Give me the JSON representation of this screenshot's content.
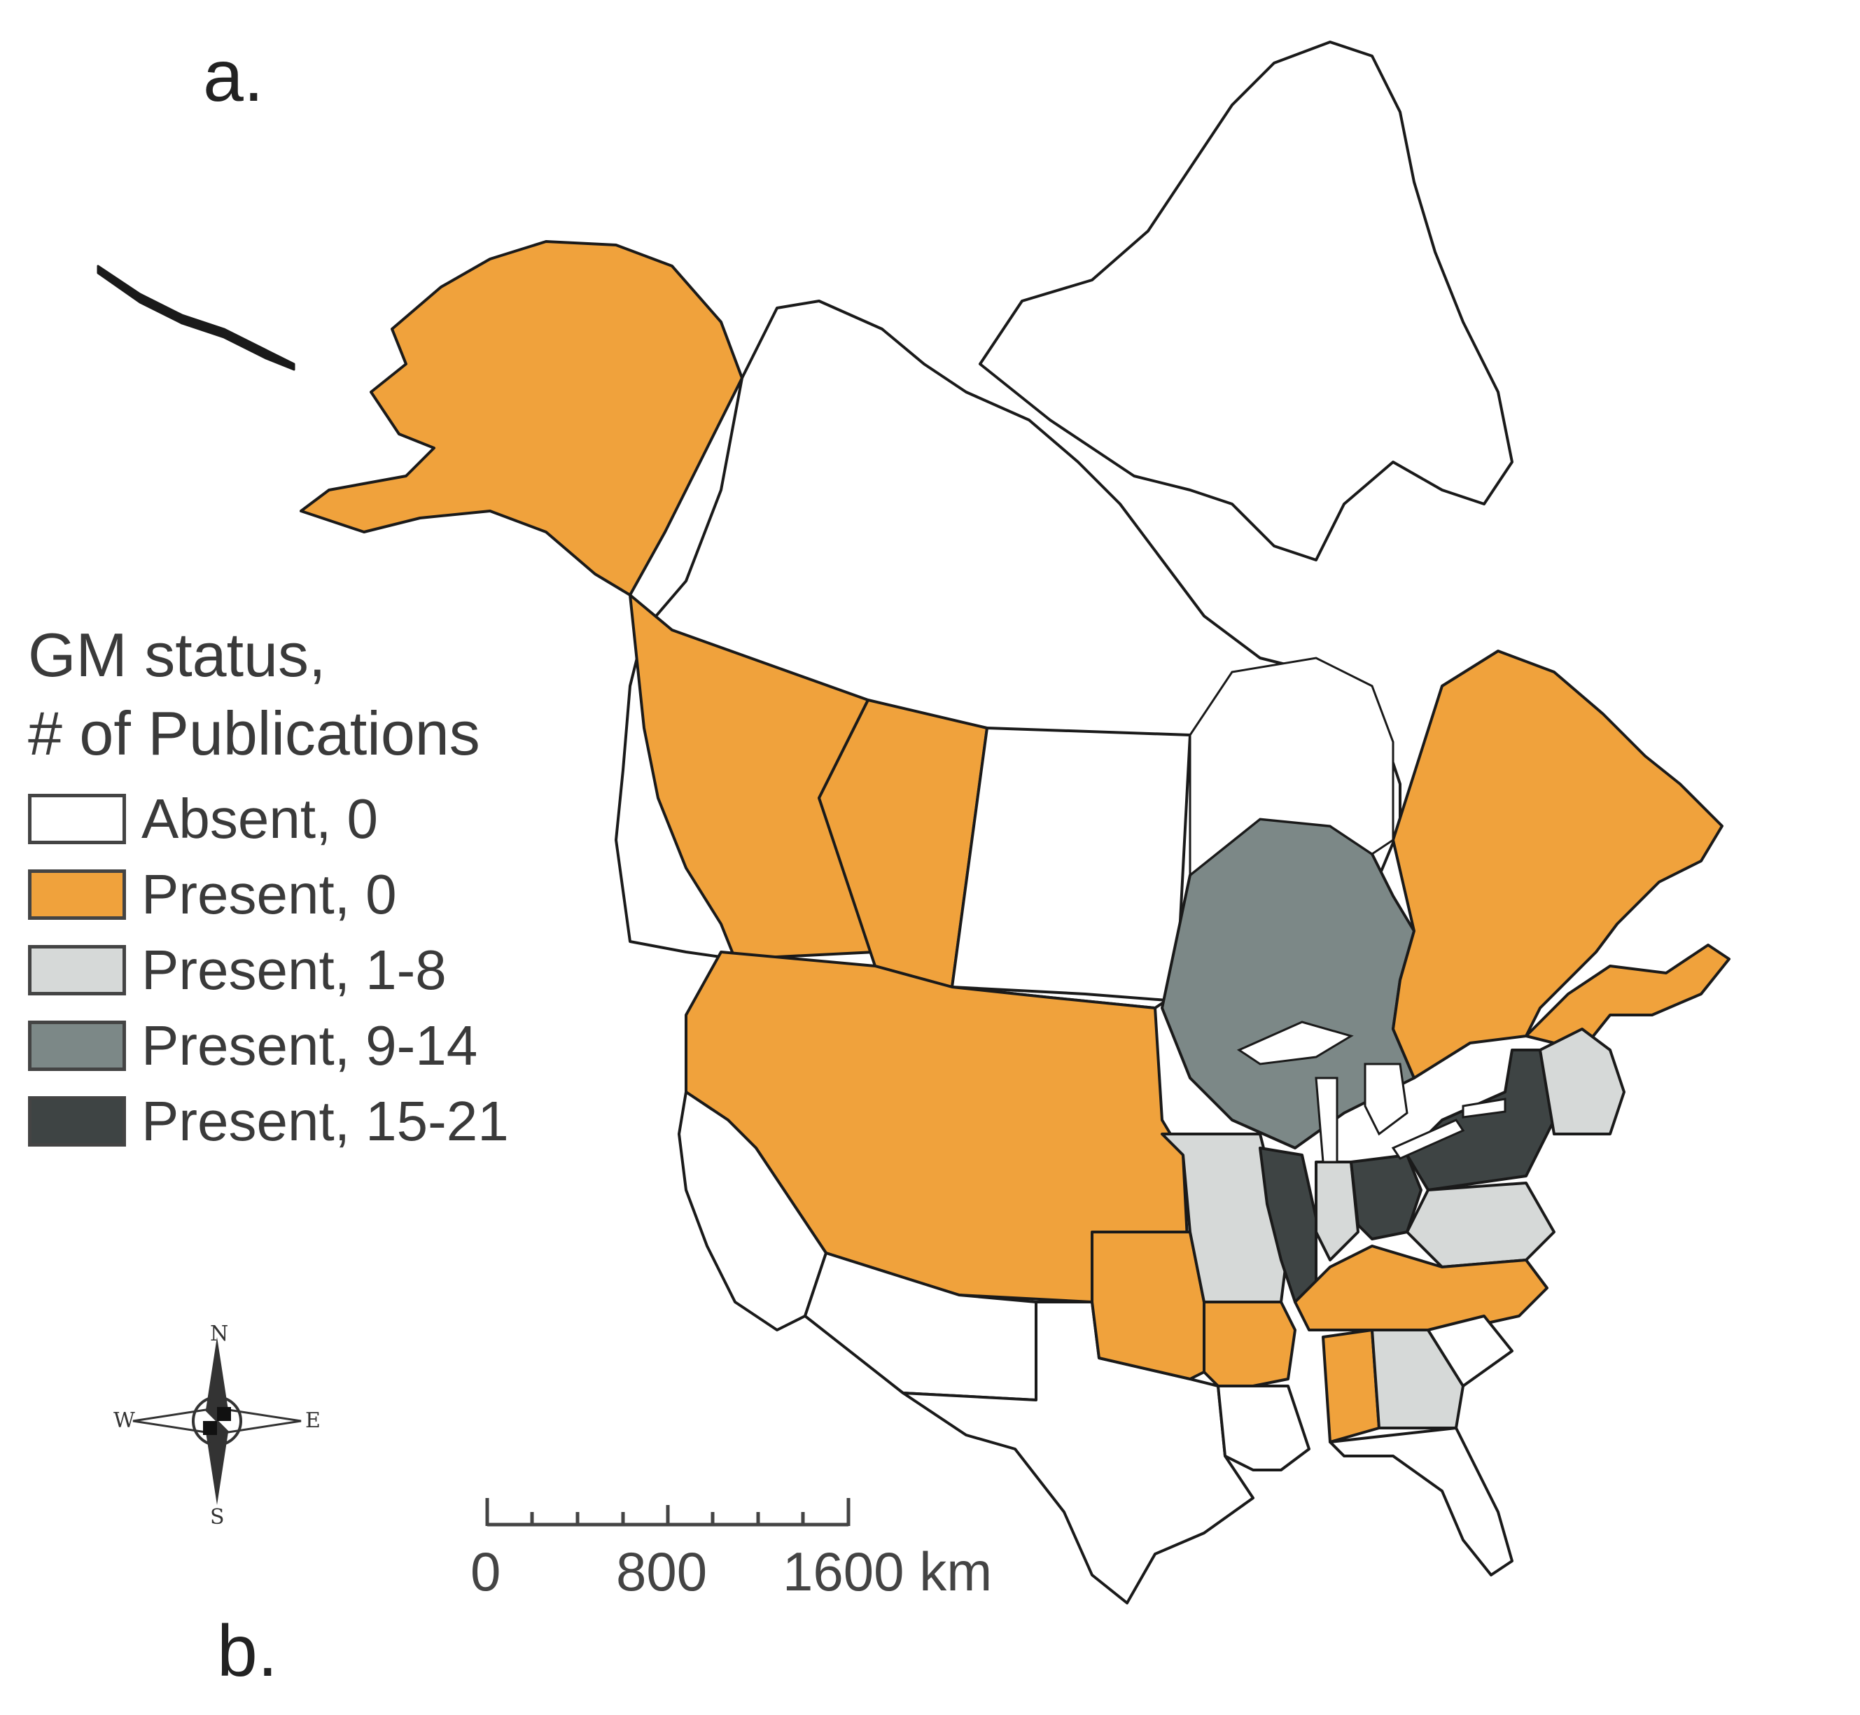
{
  "panel_labels": {
    "a": "a.",
    "b": "b."
  },
  "legend": {
    "title_line1": "GM status,",
    "title_line2": "# of Publications",
    "items": [
      {
        "label": "Absent, 0",
        "color": "#ffffff"
      },
      {
        "label": "Present, 0",
        "color": "#f0a23c"
      },
      {
        "label": "Present, 1-8",
        "color": "#d6d9d8"
      },
      {
        "label": "Present, 9-14",
        "color": "#7c8887"
      },
      {
        "label": "Present, 15-21",
        "color": "#3e4444"
      }
    ]
  },
  "scale_bar": {
    "labels": [
      "0",
      "800",
      "1600 km"
    ]
  },
  "compass": {
    "n": "N",
    "s": "S",
    "e": "E",
    "w": "W"
  },
  "colors": {
    "absent": "#ffffff",
    "present_0": "#f0a23c",
    "present_1_8": "#d6d9d8",
    "present_9_14": "#7c8887",
    "present_15_21": "#3e4444",
    "outline": "#1a1a1a"
  }
}
